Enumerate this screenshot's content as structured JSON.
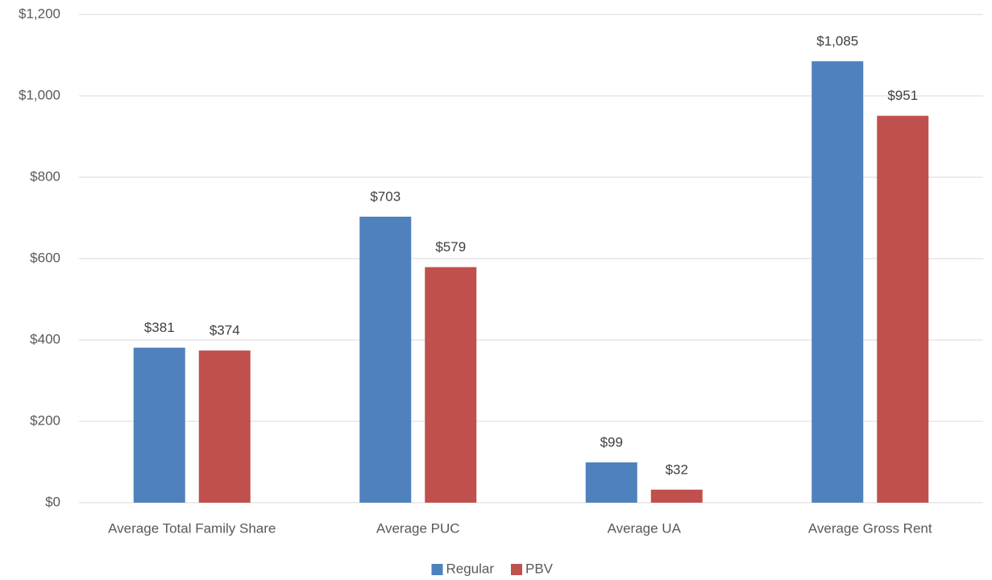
{
  "chart_data": {
    "type": "bar",
    "categories": [
      "Average Total Family Share",
      "Average PUC",
      "Average UA",
      "Average Gross Rent"
    ],
    "series": [
      {
        "name": "Regular",
        "color": "#4f81bd",
        "values": [
          381,
          703,
          99,
          1085
        ],
        "value_labels": [
          "$381",
          "$703",
          "$99",
          "$1,085"
        ]
      },
      {
        "name": "PBV",
        "color": "#c0504d",
        "values": [
          374,
          579,
          32,
          951
        ],
        "value_labels": [
          "$374",
          "$579",
          "$32",
          "$951"
        ]
      }
    ],
    "ylim": [
      0,
      1200
    ],
    "yticks": [
      {
        "value": 0,
        "label": "$0"
      },
      {
        "value": 200,
        "label": "$200"
      },
      {
        "value": 400,
        "label": "$400"
      },
      {
        "value": 600,
        "label": "$600"
      },
      {
        "value": 800,
        "label": "$800"
      },
      {
        "value": 1000,
        "label": "$1,000"
      },
      {
        "value": 1200,
        "label": "$1,200"
      }
    ],
    "grid": true,
    "legend": "bottom"
  }
}
